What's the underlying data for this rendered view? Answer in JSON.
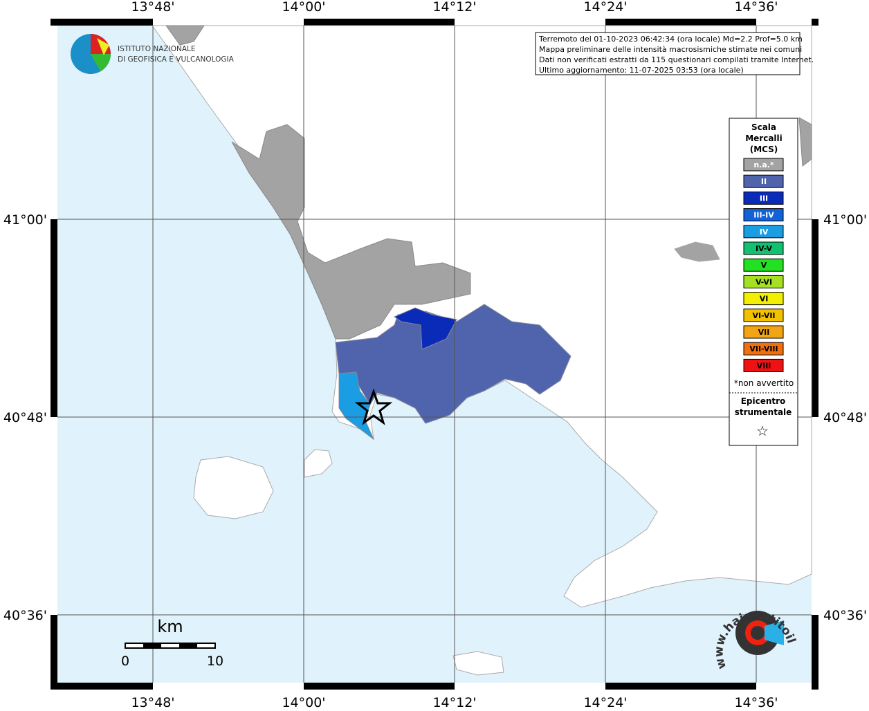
{
  "map": {
    "lon_ticks": [
      {
        "value": 13.8,
        "label": "13°48'"
      },
      {
        "value": 14.0,
        "label": "14°00'"
      },
      {
        "value": 14.2,
        "label": "14°12'"
      },
      {
        "value": 14.4,
        "label": "14°24'"
      },
      {
        "value": 14.6,
        "label": "14°36'"
      }
    ],
    "lat_ticks": [
      {
        "value": 41.0,
        "label": "41°00'"
      },
      {
        "value": 40.8,
        "label": "40°48'"
      },
      {
        "value": 40.6,
        "label": "40°36'"
      }
    ],
    "info": [
      "Terremoto del 01-10-2023 06:42:34 (ora locale) Md=2.2 Prof=5.0 km",
      "Mappa preliminare delle intensità macrosismiche stimate nei comuni",
      "Dati non verificati estratti da 115 questionari compilati tramite Internet.",
      "Ultimo aggiornamento: 11-07-2025 03:53 (ora locale)"
    ],
    "institute": [
      "ISTITUTO NAZIONALE",
      "DI GEOFISICA E VULCANOLOGIA"
    ],
    "legend": {
      "title": [
        "Scala",
        "Mercalli",
        "(MCS)"
      ],
      "items": [
        {
          "label": "n.a.*",
          "color": "#a3a3a3"
        },
        {
          "label": "II",
          "color": "#5064ad"
        },
        {
          "label": "III",
          "color": "#0a2bb8"
        },
        {
          "label": "III-IV",
          "color": "#1262d8"
        },
        {
          "label": "IV",
          "color": "#1a9de3"
        },
        {
          "label": "IV-V",
          "color": "#12c070"
        },
        {
          "label": "V",
          "color": "#22e022"
        },
        {
          "label": "V-VI",
          "color": "#a6e022"
        },
        {
          "label": "VI",
          "color": "#f2f000"
        },
        {
          "label": "VI-VII",
          "color": "#f2c200"
        },
        {
          "label": "VII",
          "color": "#f2a412"
        },
        {
          "label": "VII-VIII",
          "color": "#f07010"
        },
        {
          "label": "VIII",
          "color": "#f01212"
        }
      ],
      "note": "*non avvertito",
      "epicenter": [
        "Epicentro",
        "strumentale"
      ],
      "epicenter_symbol": "☆"
    },
    "scale_bar": {
      "unit": "km",
      "start": "0",
      "end": "10"
    },
    "site": "www.haisentitoilterremoto.it"
  }
}
